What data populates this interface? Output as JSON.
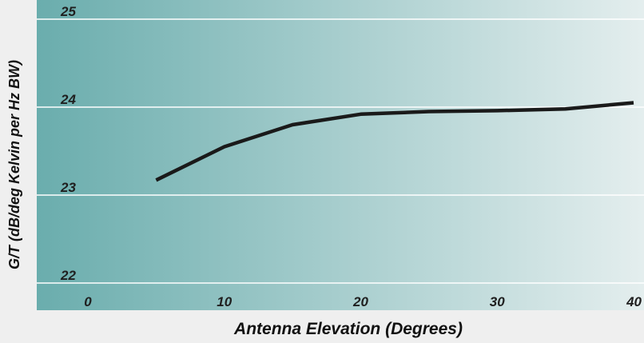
{
  "chart_data": {
    "type": "line",
    "title": "",
    "xlabel": "Antenna Elevation (Degrees)",
    "ylabel": "G/T (dB/deg Kelvin per Hz BW)",
    "xlim": [
      0,
      40
    ],
    "ylim": [
      22,
      25
    ],
    "x_ticks": [
      {
        "value": 0,
        "label": "0"
      },
      {
        "value": 10,
        "label": "10"
      },
      {
        "value": 20,
        "label": "20"
      },
      {
        "value": 30,
        "label": "30"
      },
      {
        "value": 40,
        "label": "40"
      }
    ],
    "y_ticks": [
      {
        "value": 22,
        "label": "22"
      },
      {
        "value": 23,
        "label": "23"
      },
      {
        "value": 24,
        "label": "24"
      },
      {
        "value": 25,
        "label": "25"
      }
    ],
    "grid": "horizontal",
    "series": [
      {
        "x": [
          5,
          10,
          15,
          20,
          25,
          30,
          35,
          40
        ],
        "y": [
          23.17,
          23.55,
          23.8,
          23.92,
          23.95,
          23.96,
          23.98,
          24.05
        ]
      }
    ],
    "colors": {
      "line": "#1a1a1a",
      "grid": "#ffffff",
      "plot_gradient_start": "#6aadad",
      "plot_gradient_end": "#e4eeee",
      "page_background": "#efefef"
    }
  }
}
